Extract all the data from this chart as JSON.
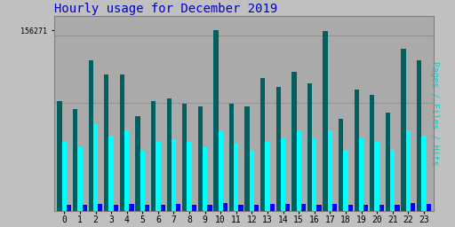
{
  "title": "Hourly usage for December 2019",
  "ylabel": "Pages / Files / Hits",
  "xlabel_ticks": [
    0,
    1,
    2,
    3,
    4,
    5,
    6,
    7,
    8,
    9,
    10,
    11,
    12,
    13,
    14,
    15,
    16,
    17,
    18,
    19,
    20,
    21,
    22,
    23
  ],
  "ymax": 156271,
  "ytick_label": "156271",
  "hits": [
    95000,
    88000,
    130000,
    118000,
    118000,
    82000,
    95000,
    97000,
    93000,
    90000,
    156271,
    93000,
    90000,
    115000,
    107000,
    120000,
    110000,
    156000,
    80000,
    105000,
    100000,
    85000,
    140000,
    130000
  ],
  "files": [
    60000,
    55000,
    75000,
    65000,
    70000,
    52000,
    60000,
    62000,
    60000,
    55000,
    70000,
    58000,
    53000,
    60000,
    63000,
    70000,
    63000,
    70000,
    53000,
    63000,
    60000,
    53000,
    70000,
    65000
  ],
  "pages": [
    5500,
    5000,
    6000,
    5500,
    6000,
    5000,
    5500,
    6000,
    5000,
    5000,
    6500,
    5500,
    5000,
    6000,
    6000,
    6000,
    5500,
    6000,
    5000,
    5500,
    5500,
    5000,
    6500,
    6000
  ],
  "color_hits": "#006060",
  "color_files": "#00FFFF",
  "color_pages": "#0000FF",
  "bg_color": "#C0C0C0",
  "plot_bg": "#AAAAAA",
  "title_color": "#0000CC",
  "ylabel_color": "#00CCCC",
  "title_fontsize": 10,
  "ylabel_fontsize": 7
}
